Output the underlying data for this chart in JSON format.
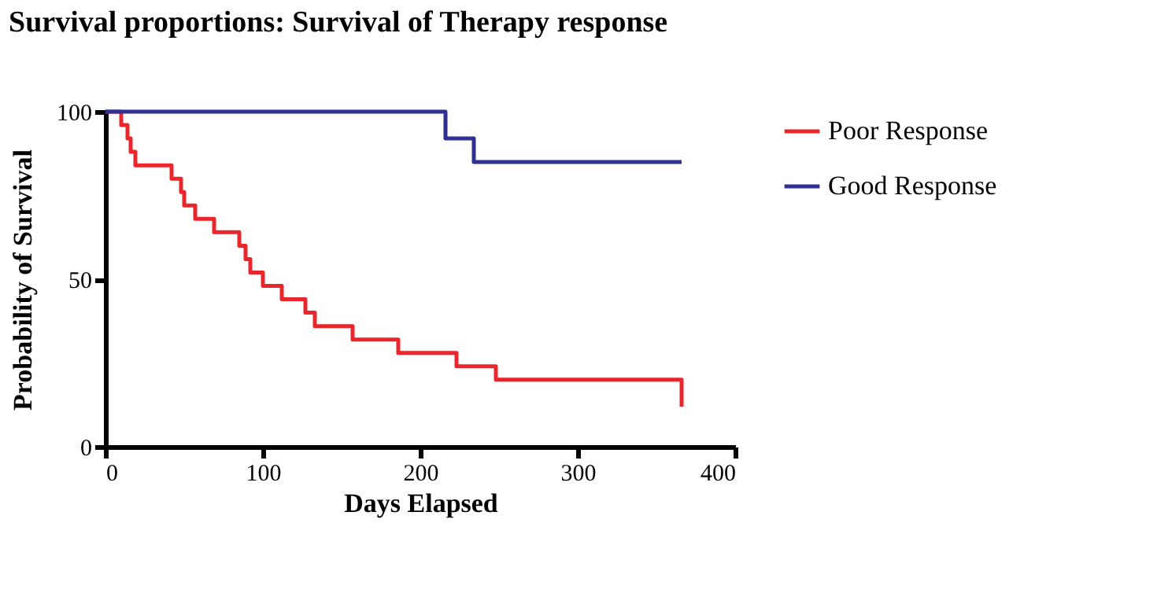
{
  "chart_data": {
    "type": "step",
    "title": "Survival proportions: Survival of Therapy response",
    "xlabel": "Days Elapsed",
    "ylabel": "Probability of Survival",
    "xlim": [
      0,
      400
    ],
    "ylim": [
      0,
      100
    ],
    "xticks": [
      0,
      100,
      200,
      300,
      400
    ],
    "yticks": [
      0,
      50,
      100
    ],
    "grid": false,
    "legend": "top right",
    "marker": "none",
    "line_style": "solid",
    "series": [
      {
        "name": "Poor Response",
        "color": "#e8262b",
        "x": [
          0,
          10,
          14,
          16,
          19,
          42,
          48,
          50,
          57,
          69,
          85,
          89,
          92,
          100,
          112,
          127,
          133,
          157,
          186,
          223,
          248,
          260,
          366
        ],
        "values": [
          100,
          96,
          92,
          88,
          84,
          80,
          76,
          72,
          68,
          64,
          60,
          56,
          52,
          48,
          44,
          40,
          36,
          32,
          28,
          24,
          20,
          20,
          12
        ]
      },
      {
        "name": "Good Response",
        "color": "#2e3192",
        "x": [
          0,
          216,
          234,
          366
        ],
        "values": [
          100,
          92,
          85,
          85
        ]
      }
    ]
  }
}
